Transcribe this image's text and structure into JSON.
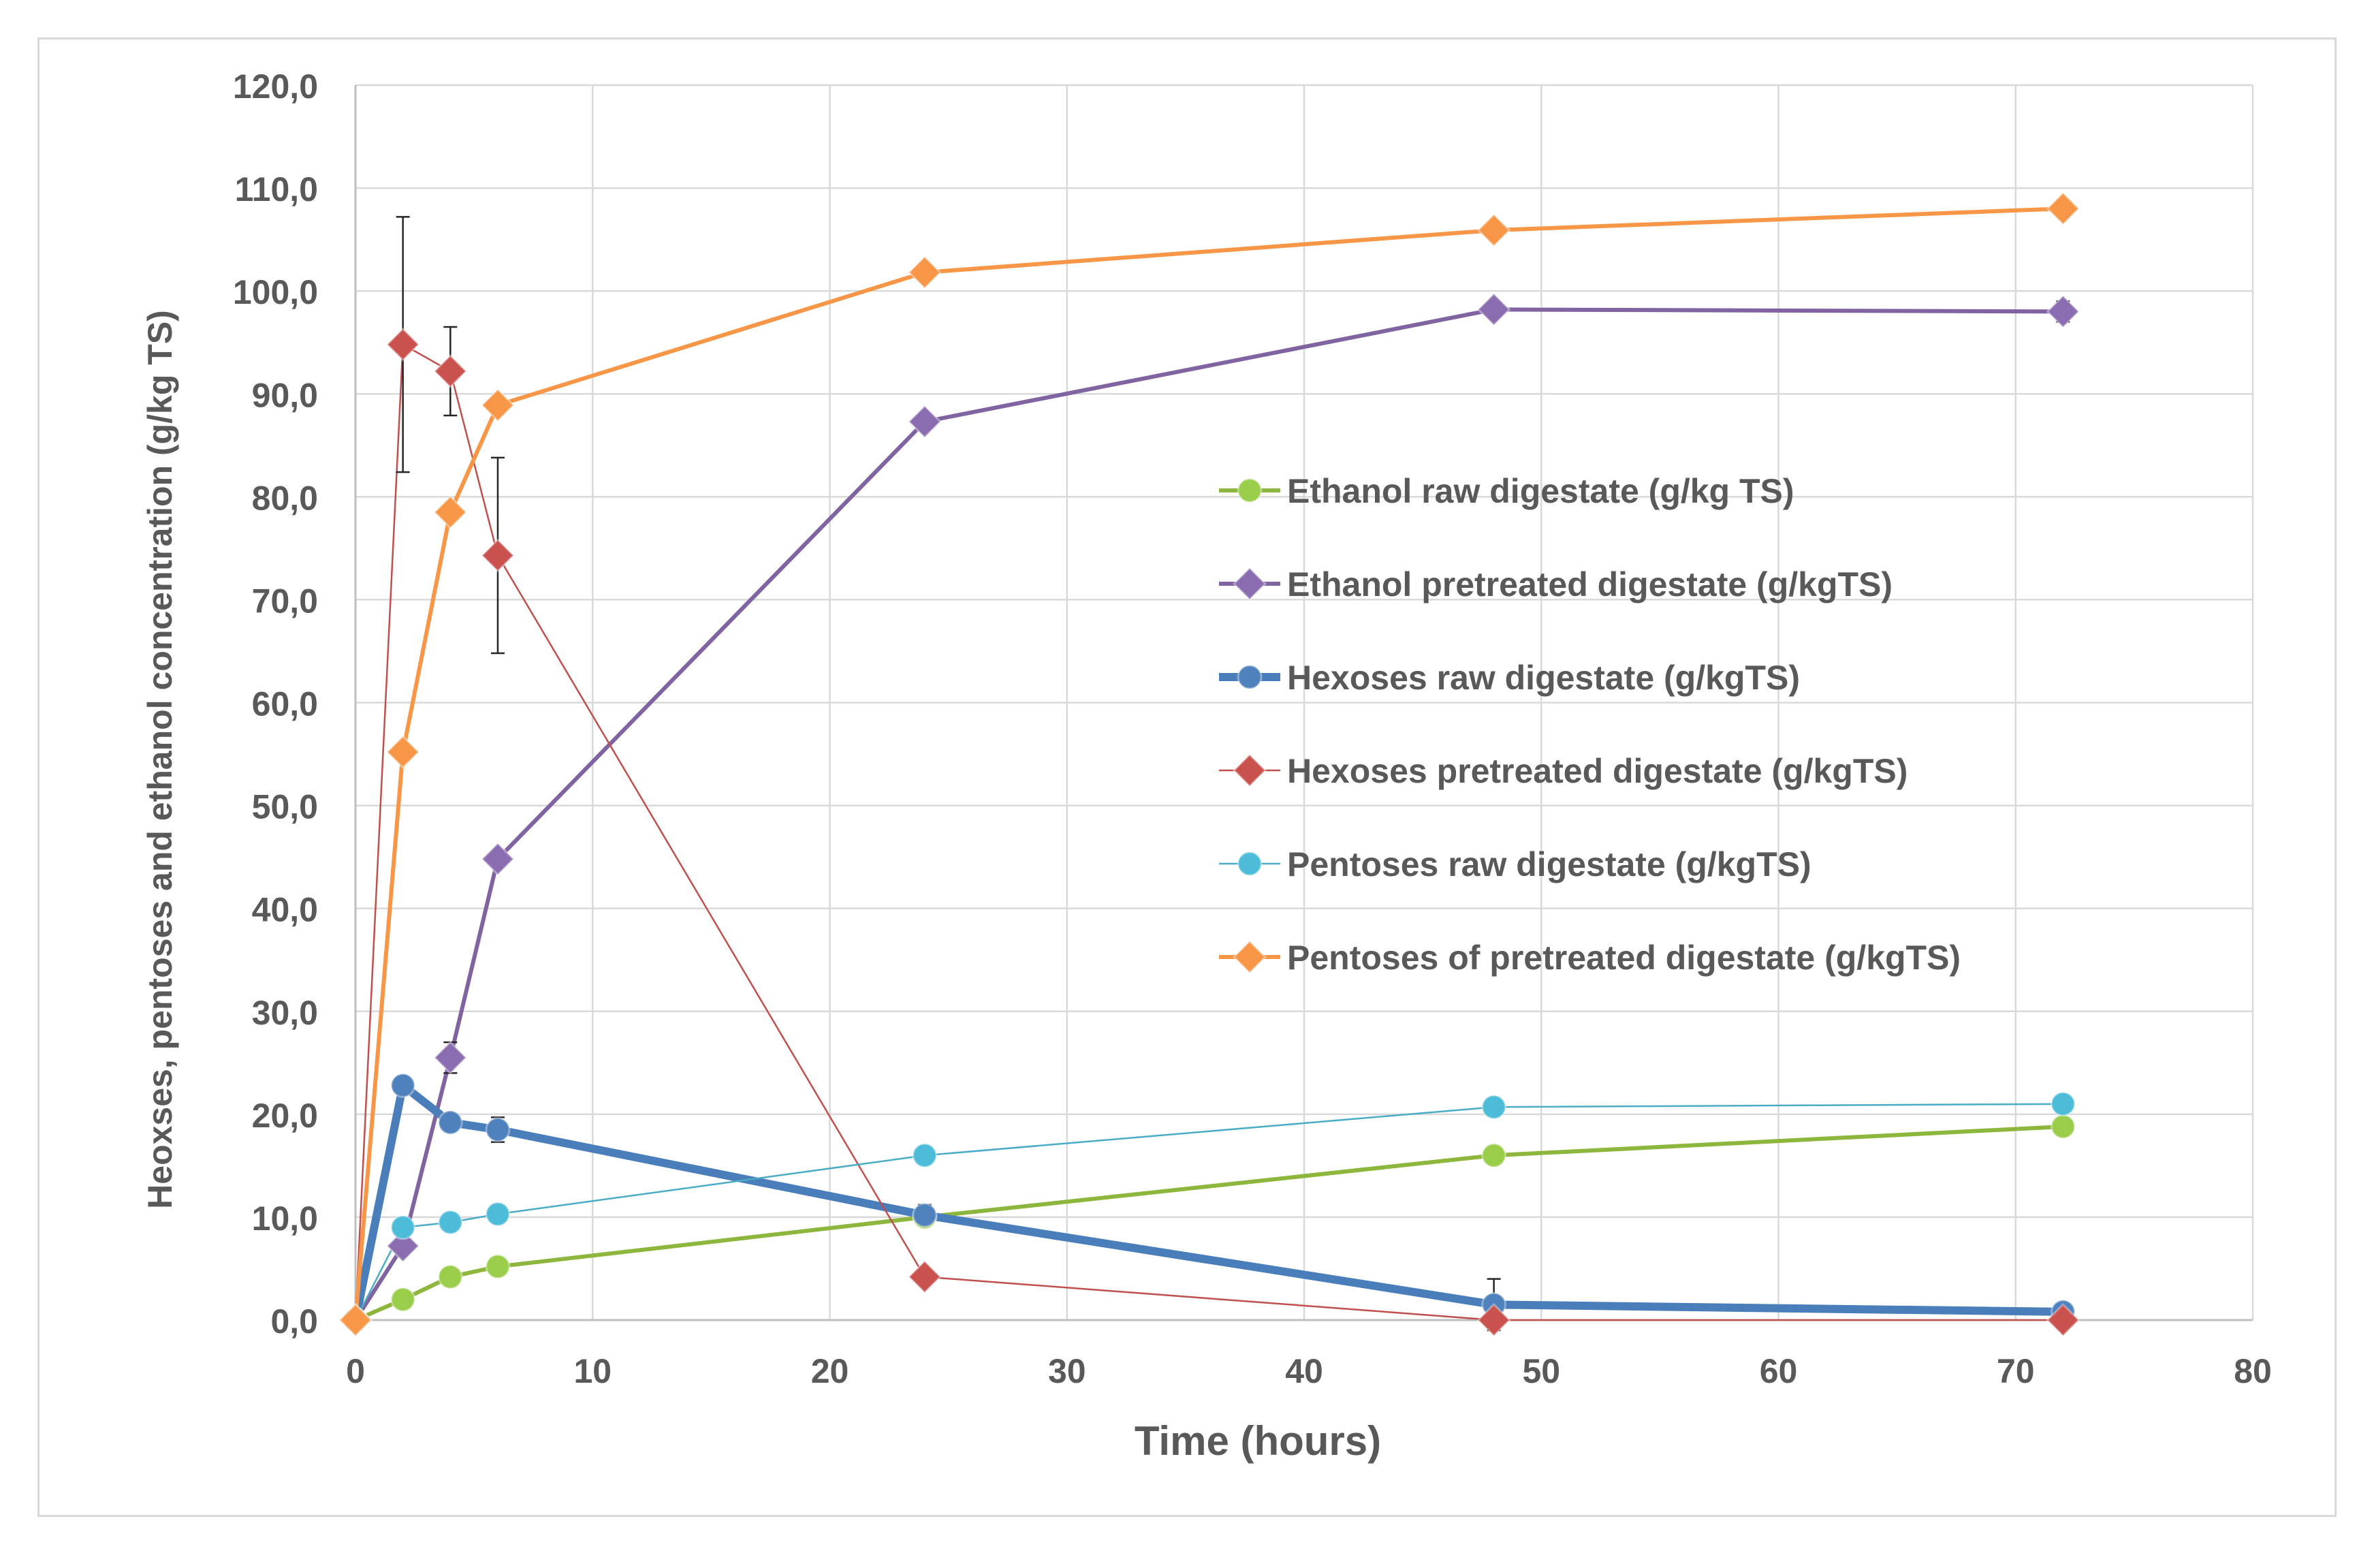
{
  "chart_data": {
    "type": "line",
    "title": "",
    "xlabel": "Time (hours)",
    "ylabel": "Heoxses, pentoses and ethanol concentration (g/kg TS)",
    "xlim": [
      0,
      80
    ],
    "ylim": [
      0,
      120
    ],
    "x_ticks": [
      0,
      10,
      20,
      30,
      40,
      50,
      60,
      70,
      80
    ],
    "x_tick_labels": [
      "0",
      "10",
      "20",
      "30",
      "40",
      "50",
      "60",
      "70",
      "80"
    ],
    "y_ticks": [
      0,
      10,
      20,
      30,
      40,
      50,
      60,
      70,
      80,
      90,
      100,
      110,
      120
    ],
    "y_tick_labels": [
      "0,0",
      "10,0",
      "20,0",
      "30,0",
      "40,0",
      "50,0",
      "60,0",
      "70,0",
      "80,0",
      "90,0",
      "100,0",
      "110,0",
      "120,0"
    ],
    "grid": true,
    "legend_position": "center-right",
    "series": [
      {
        "name": "Ethanol  raw digestate (g/kg TS)",
        "marker": "circle",
        "color": "#8cb63c",
        "marker_color": "#9acd4a",
        "weight": "medium",
        "x": [
          0,
          2,
          4,
          6,
          24,
          48,
          72
        ],
        "values": [
          0,
          2,
          4.2,
          5.2,
          10,
          16,
          18.8
        ],
        "errors": [
          0,
          0,
          0,
          0,
          0,
          0,
          0
        ]
      },
      {
        "name": "Ethanol pretreated digestate (g/kgTS)",
        "marker": "diamond",
        "color": "#8064a2",
        "marker_color": "#8a6db0",
        "weight": "medium",
        "x": [
          0,
          2,
          4,
          6,
          24,
          48,
          72
        ],
        "values": [
          0,
          7.2,
          25.5,
          44.8,
          87.3,
          98.2,
          98
        ],
        "errors": [
          0,
          0,
          1.5,
          0,
          0,
          0,
          1
        ]
      },
      {
        "name": "Hexoses raw digestate (g/kgTS)",
        "marker": "circle",
        "color": "#4a7ebb",
        "marker_color": "#4f81bd",
        "weight": "thick",
        "x": [
          0,
          2,
          4,
          6,
          24,
          48,
          72
        ],
        "values": [
          0,
          22.8,
          19.2,
          18.5,
          10.2,
          1.5,
          0.8
        ],
        "errors": [
          0,
          0,
          0,
          1.2,
          1,
          2.5,
          0
        ]
      },
      {
        "name": "Hexoses pretreated digestate (g/kgTS)",
        "marker": "diamond",
        "color": "#c0504d",
        "marker_color": "#c9514e",
        "weight": "thin",
        "x": [
          0,
          2,
          4,
          6,
          24,
          48,
          72
        ],
        "values": [
          0,
          94.8,
          92.2,
          74.3,
          4.2,
          0,
          0
        ],
        "errors": [
          0,
          12.4,
          4.3,
          9.5,
          0,
          0,
          0
        ]
      },
      {
        "name": "Pentoses raw digestate (g/kgTS)",
        "marker": "circle",
        "color": "#4bacc6",
        "marker_color": "#4dbcd8",
        "weight": "thin",
        "x": [
          0,
          2,
          4,
          6,
          24,
          48,
          72
        ],
        "values": [
          0,
          9,
          9.5,
          10.3,
          16,
          20.7,
          21
        ],
        "errors": [
          0,
          0,
          0,
          0,
          0,
          0,
          0
        ]
      },
      {
        "name": "Pentoses of pretreated digestate (g/kgTS)",
        "marker": "diamond",
        "color": "#f79646",
        "marker_color": "#f79646",
        "weight": "medium",
        "x": [
          0,
          2,
          4,
          6,
          24,
          48,
          72
        ],
        "values": [
          0,
          55.2,
          78.5,
          88.9,
          101.8,
          105.9,
          108
        ],
        "errors": [
          0,
          0,
          0,
          0,
          0,
          0,
          0
        ]
      }
    ]
  }
}
